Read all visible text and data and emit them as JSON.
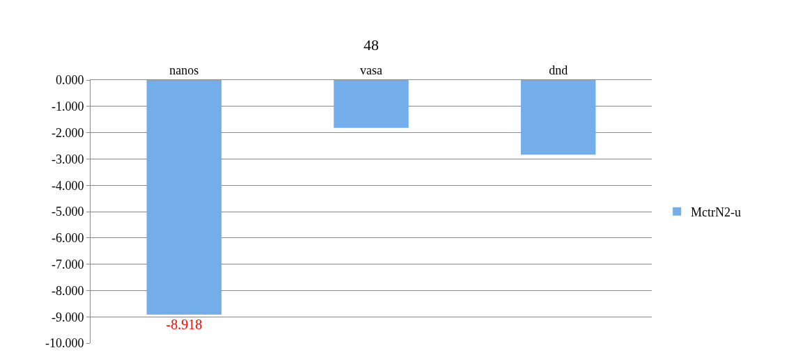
{
  "chart_data": {
    "type": "bar",
    "xlabel": "48",
    "categories": [
      "nanos",
      "vasa",
      "dnd"
    ],
    "series": [
      {
        "name": "MctrN2-u",
        "color": "#74aeea",
        "values": [
          -8.918,
          -1.82,
          -2.84
        ],
        "value_labels": [
          "-8.918",
          null,
          null
        ]
      }
    ],
    "ylim": [
      -10,
      0
    ],
    "yticks": [
      {
        "value": 0,
        "label": "0.000"
      },
      {
        "value": -1,
        "label": "-1.000"
      },
      {
        "value": -2,
        "label": "-2.000"
      },
      {
        "value": -3,
        "label": "-3.000"
      },
      {
        "value": -4,
        "label": "-4.000"
      },
      {
        "value": -5,
        "label": "-5.000"
      },
      {
        "value": -6,
        "label": "-6.000"
      },
      {
        "value": -7,
        "label": "-7.000"
      },
      {
        "value": -8,
        "label": "-8.000"
      },
      {
        "value": -9,
        "label": "-9.000"
      },
      {
        "value": -10,
        "label": "-10.000"
      }
    ],
    "grid": "y",
    "legend": "right"
  }
}
